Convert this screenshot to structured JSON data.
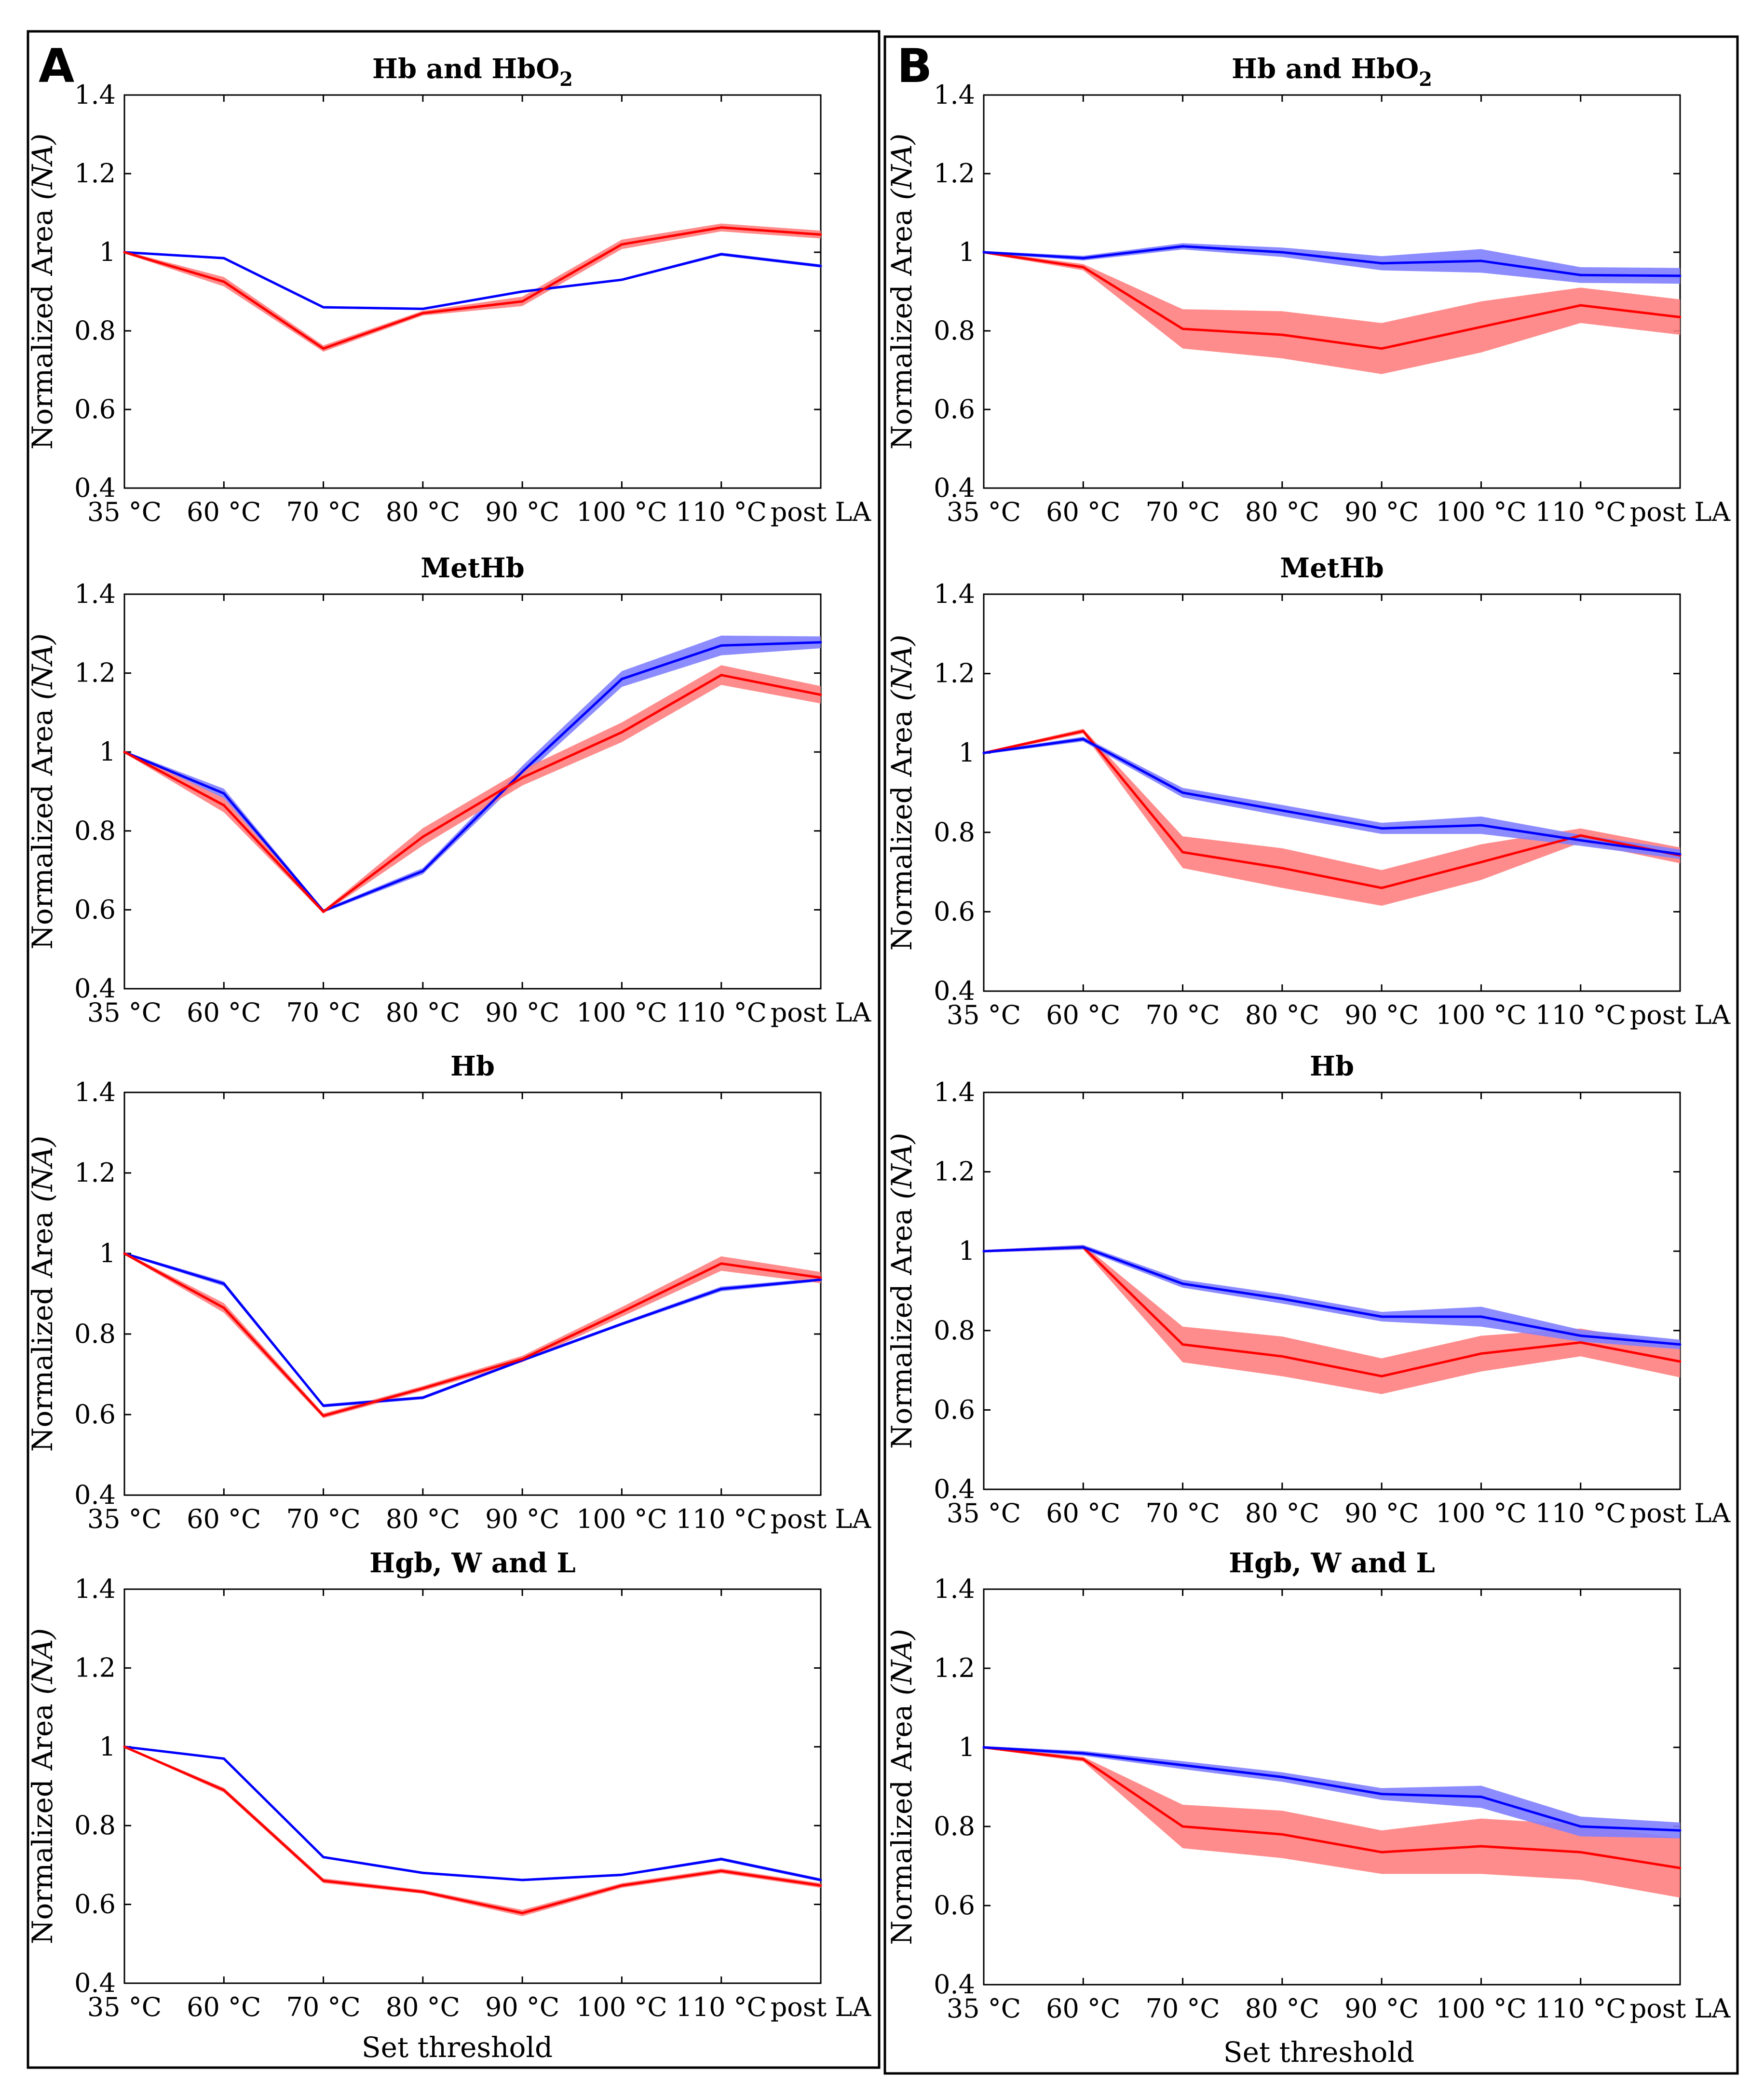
{
  "panels": [
    {
      "label": "A",
      "xlabel": "Set threshold"
    },
    {
      "label": "B",
      "xlabel": "Set threshold"
    }
  ],
  "colors": {
    "red": "#ff0000",
    "red_band": "#ff8080",
    "blue": "#0000ff",
    "blue_band": "#8080ff"
  },
  "chart_data": [
    {
      "type": "line",
      "panel": "A",
      "title": "Hb and HbO",
      "title_subscript": "2",
      "categories": [
        "35 °C",
        "60 °C",
        "70 °C",
        "80 °C",
        "90 °C",
        "100 °C",
        "110 °C",
        "post LA"
      ],
      "ylabel": "Normalized Area",
      "ylabel_unit": "(NA)",
      "ylim": [
        0.4,
        1.4
      ],
      "yticks": [
        "0.4",
        "0.6",
        "0.8",
        "1",
        "1.2",
        "1.4"
      ],
      "series": [
        {
          "name": "blue",
          "color": "#0000ff",
          "values": [
            1.0,
            0.985,
            0.86,
            0.856,
            0.9,
            0.93,
            0.995,
            0.965
          ],
          "band": [
            0.002,
            0.003,
            0.003,
            0.003,
            0.003,
            0.003,
            0.004,
            0.004
          ]
        },
        {
          "name": "red",
          "color": "#ff0000",
          "values": [
            1.0,
            0.925,
            0.755,
            0.845,
            0.875,
            1.02,
            1.063,
            1.045
          ],
          "band": [
            0.003,
            0.012,
            0.008,
            0.006,
            0.012,
            0.012,
            0.01,
            0.01
          ]
        }
      ]
    },
    {
      "type": "line",
      "panel": "A",
      "title": "MetHb",
      "title_subscript": "",
      "categories": [
        "35 °C",
        "60 °C",
        "70 °C",
        "80 °C",
        "90 °C",
        "100 °C",
        "110 °C",
        "post LA"
      ],
      "ylabel": "Normalized Area",
      "ylabel_unit": "(NA)",
      "ylim": [
        0.4,
        1.4
      ],
      "yticks": [
        "0.4",
        "0.6",
        "0.8",
        "1",
        "1.2",
        "1.4"
      ],
      "series": [
        {
          "name": "blue",
          "color": "#0000ff",
          "values": [
            1.0,
            0.895,
            0.597,
            0.698,
            0.95,
            1.185,
            1.27,
            1.278
          ],
          "band": [
            0.003,
            0.012,
            0.004,
            0.008,
            0.015,
            0.02,
            0.025,
            0.015
          ]
        },
        {
          "name": "red",
          "color": "#ff0000",
          "values": [
            1.0,
            0.865,
            0.595,
            0.785,
            0.935,
            1.05,
            1.195,
            1.145
          ],
          "band": [
            0.003,
            0.018,
            0.004,
            0.022,
            0.02,
            0.025,
            0.025,
            0.022
          ]
        }
      ]
    },
    {
      "type": "line",
      "panel": "A",
      "title": "Hb",
      "title_subscript": "",
      "categories": [
        "35 °C",
        "60 °C",
        "70 °C",
        "80 °C",
        "90 °C",
        "100 °C",
        "110 °C",
        "post LA"
      ],
      "ylabel": "Normalized Area",
      "ylabel_unit": "(NA)",
      "ylim": [
        0.4,
        1.4
      ],
      "yticks": [
        "0.4",
        "0.6",
        "0.8",
        "1",
        "1.2",
        "1.4"
      ],
      "series": [
        {
          "name": "blue",
          "color": "#0000ff",
          "values": [
            1.0,
            0.925,
            0.622,
            0.642,
            0.735,
            0.825,
            0.912,
            0.935
          ],
          "band": [
            0.003,
            0.006,
            0.004,
            0.004,
            0.004,
            0.004,
            0.006,
            0.004
          ]
        },
        {
          "name": "red",
          "color": "#ff0000",
          "values": [
            1.0,
            0.865,
            0.597,
            0.665,
            0.738,
            0.855,
            0.975,
            0.94
          ],
          "band": [
            0.003,
            0.012,
            0.006,
            0.006,
            0.008,
            0.012,
            0.018,
            0.014
          ]
        }
      ]
    },
    {
      "type": "line",
      "panel": "A",
      "title": "Hgb, W and L",
      "title_subscript": "",
      "categories": [
        "35 °C",
        "60 °C",
        "70 °C",
        "80 °C",
        "90 °C",
        "100 °C",
        "110 °C",
        "post LA"
      ],
      "ylabel": "Normalized Area",
      "ylabel_unit": "(NA)",
      "ylim": [
        0.4,
        1.4
      ],
      "yticks": [
        "0.4",
        "0.6",
        "0.8",
        "1",
        "1.2",
        "1.4"
      ],
      "series": [
        {
          "name": "blue",
          "color": "#0000ff",
          "values": [
            1.0,
            0.97,
            0.72,
            0.68,
            0.662,
            0.675,
            0.715,
            0.662
          ],
          "band": [
            0.002,
            0.003,
            0.003,
            0.003,
            0.003,
            0.003,
            0.004,
            0.004
          ]
        },
        {
          "name": "red",
          "color": "#ff0000",
          "values": [
            1.0,
            0.89,
            0.66,
            0.632,
            0.578,
            0.648,
            0.685,
            0.648
          ],
          "band": [
            0.002,
            0.006,
            0.006,
            0.005,
            0.008,
            0.006,
            0.006,
            0.006
          ]
        }
      ]
    },
    {
      "type": "line",
      "panel": "B",
      "title": "Hb and HbO",
      "title_subscript": "2",
      "categories": [
        "35 °C",
        "60 °C",
        "70 °C",
        "80 °C",
        "90 °C",
        "100 °C",
        "110 °C",
        "post LA"
      ],
      "ylabel": "Normalized Area",
      "ylabel_unit": "(NA)",
      "ylim": [
        0.4,
        1.4
      ],
      "yticks": [
        "0.4",
        "0.6",
        "0.8",
        "1",
        "1.2",
        "1.4"
      ],
      "series": [
        {
          "name": "red",
          "color": "#ff0000",
          "values": [
            1.0,
            0.962,
            0.805,
            0.79,
            0.755,
            0.81,
            0.865,
            0.835
          ],
          "band": [
            0.003,
            0.008,
            0.05,
            0.06,
            0.065,
            0.065,
            0.045,
            0.045
          ]
        },
        {
          "name": "blue",
          "color": "#0000ff",
          "values": [
            1.0,
            0.985,
            1.015,
            1.0,
            0.972,
            0.978,
            0.942,
            0.94
          ],
          "band": [
            0.003,
            0.006,
            0.008,
            0.012,
            0.018,
            0.03,
            0.02,
            0.02
          ]
        }
      ]
    },
    {
      "type": "line",
      "panel": "B",
      "title": "MetHb",
      "title_subscript": "",
      "categories": [
        "35 °C",
        "60 °C",
        "70 °C",
        "80 °C",
        "90 °C",
        "100 °C",
        "110 °C",
        "post LA"
      ],
      "ylabel": "Normalized Area",
      "ylabel_unit": "(NA)",
      "ylim": [
        0.4,
        1.4
      ],
      "yticks": [
        "0.4",
        "0.6",
        "0.8",
        "1",
        "1.2",
        "1.4"
      ],
      "series": [
        {
          "name": "red",
          "color": "#ff0000",
          "values": [
            1.0,
            1.055,
            0.75,
            0.71,
            0.66,
            0.725,
            0.792,
            0.742
          ],
          "band": [
            0.003,
            0.006,
            0.04,
            0.05,
            0.045,
            0.045,
            0.018,
            0.02
          ]
        },
        {
          "name": "blue",
          "color": "#0000ff",
          "values": [
            1.0,
            1.035,
            0.9,
            0.855,
            0.81,
            0.818,
            0.78,
            0.745
          ],
          "band": [
            0.003,
            0.006,
            0.012,
            0.014,
            0.014,
            0.022,
            0.014,
            0.012
          ]
        }
      ]
    },
    {
      "type": "line",
      "panel": "B",
      "title": "Hb",
      "title_subscript": "",
      "categories": [
        "35 °C",
        "60 °C",
        "70 °C",
        "80 °C",
        "90 °C",
        "100 °C",
        "110 °C",
        "post LA"
      ],
      "ylabel": "Normalized Area",
      "ylabel_unit": "(NA)",
      "ylim": [
        0.4,
        1.4
      ],
      "yticks": [
        "0.4",
        "0.6",
        "0.8",
        "1",
        "1.2",
        "1.4"
      ],
      "series": [
        {
          "name": "red",
          "color": "#ff0000",
          "values": [
            1.0,
            1.01,
            0.765,
            0.735,
            0.685,
            0.742,
            0.77,
            0.722
          ],
          "band": [
            0.003,
            0.006,
            0.045,
            0.05,
            0.045,
            0.045,
            0.035,
            0.04
          ]
        },
        {
          "name": "blue",
          "color": "#0000ff",
          "values": [
            1.0,
            1.01,
            0.918,
            0.88,
            0.835,
            0.835,
            0.787,
            0.765
          ],
          "band": [
            0.003,
            0.006,
            0.01,
            0.012,
            0.012,
            0.025,
            0.015,
            0.012
          ]
        }
      ]
    },
    {
      "type": "line",
      "panel": "B",
      "title": "Hgb, W and L",
      "title_subscript": "",
      "categories": [
        "35 °C",
        "60 °C",
        "70 °C",
        "80 °C",
        "90 °C",
        "100 °C",
        "110 °C",
        "post LA"
      ],
      "ylabel": "Normalized Area",
      "ylabel_unit": "(NA)",
      "ylim": [
        0.4,
        1.4
      ],
      "yticks": [
        "0.4",
        "0.6",
        "0.8",
        "1",
        "1.2",
        "1.4"
      ],
      "series": [
        {
          "name": "red",
          "color": "#ff0000",
          "values": [
            1.0,
            0.97,
            0.8,
            0.78,
            0.735,
            0.75,
            0.735,
            0.695
          ],
          "band": [
            0.003,
            0.006,
            0.055,
            0.06,
            0.055,
            0.07,
            0.07,
            0.075
          ]
        },
        {
          "name": "blue",
          "color": "#0000ff",
          "values": [
            1.0,
            0.985,
            0.955,
            0.925,
            0.882,
            0.875,
            0.8,
            0.79
          ],
          "band": [
            0.003,
            0.006,
            0.01,
            0.012,
            0.015,
            0.028,
            0.025,
            0.02
          ]
        }
      ]
    }
  ]
}
